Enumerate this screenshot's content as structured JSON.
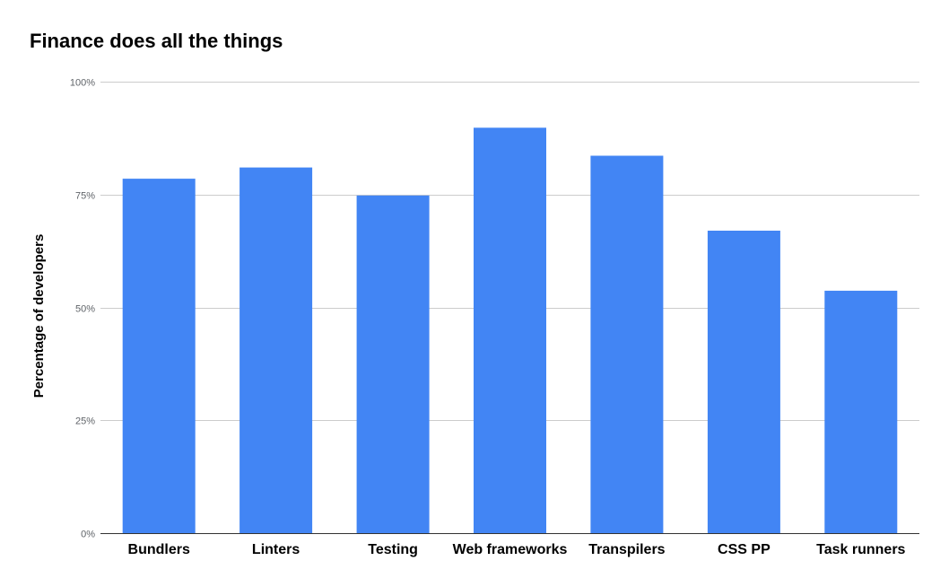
{
  "chart_data": {
    "type": "bar",
    "title": "Finance does all the things",
    "xlabel": "",
    "ylabel": "Percentage of developers",
    "categories": [
      "Bundlers",
      "Linters",
      "Testing",
      "Web frameworks",
      "Transpilers",
      "CSS PP",
      "Task runners"
    ],
    "values": [
      78.5,
      81,
      74.8,
      89.8,
      83.6,
      67,
      53.7
    ],
    "ylim": [
      0,
      100
    ],
    "yticks": [
      {
        "value": 0,
        "label": "0%"
      },
      {
        "value": 25,
        "label": "25%"
      },
      {
        "value": 50,
        "label": "50%"
      },
      {
        "value": 75,
        "label": "75%"
      },
      {
        "value": 100,
        "label": "100%"
      }
    ],
    "grid": true,
    "legend": "none",
    "colors": {
      "bar": "#4285f4",
      "grid": "#cccccc",
      "axis": "#333333"
    }
  }
}
